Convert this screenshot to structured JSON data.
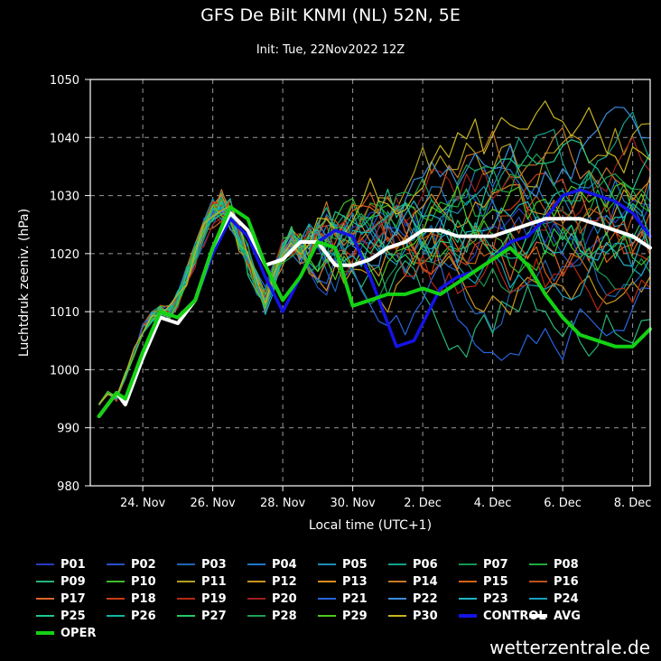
{
  "title": "GFS De Bilt KNMI (NL) 52N, 5E",
  "subtitle": "Init: Tue, 22Nov2022 12Z",
  "watermark": "wetterzentrale.de",
  "chart_data": {
    "type": "line",
    "title": "GFS De Bilt KNMI (NL) 52N, 5E",
    "subtitle": "Init: Tue, 22Nov2022 12Z",
    "xlabel": "Local time (UTC+1)",
    "ylabel": "Luchtdruk zeeniv. (hPa)",
    "xlim_days": [
      0,
      16
    ],
    "ylim": [
      980,
      1050
    ],
    "yticks": [
      980,
      990,
      1000,
      1010,
      1020,
      1030,
      1040,
      1050
    ],
    "xticks": [
      {
        "day": 1.5,
        "label": "24. Nov"
      },
      {
        "day": 3.5,
        "label": "26. Nov"
      },
      {
        "day": 5.5,
        "label": "28. Nov"
      },
      {
        "day": 7.5,
        "label": "30. Nov"
      },
      {
        "day": 9.5,
        "label": "2. Dec"
      },
      {
        "day": 11.5,
        "label": "4. Dec"
      },
      {
        "day": 13.5,
        "label": "6. Dec"
      },
      {
        "day": 15.5,
        "label": "8. Dec"
      }
    ],
    "grid": true,
    "x_step_days": 0.25,
    "base_values": [
      992,
      994,
      996,
      995,
      999,
      1003,
      1007,
      1009,
      1010,
      1010,
      1012,
      1016,
      1020,
      1024,
      1027,
      1028,
      1027,
      1023,
      1019,
      1015,
      1012,
      1016,
      1020,
      1022,
      1021
    ],
    "series": [
      {
        "name": "P01",
        "color": "#283cbe",
        "seed": 1,
        "target": 1020
      },
      {
        "name": "P02",
        "color": "#2850c8",
        "seed": 2,
        "target": 1027
      },
      {
        "name": "P03",
        "color": "#1e64b4",
        "seed": 3,
        "target": 1014
      },
      {
        "name": "P04",
        "color": "#1e78c8",
        "seed": 4,
        "target": 1032
      },
      {
        "name": "P05",
        "color": "#1e8cb4",
        "seed": 5,
        "target": 1025
      },
      {
        "name": "P06",
        "color": "#14a08c",
        "seed": 6,
        "target": 1036
      },
      {
        "name": "P07",
        "color": "#149650",
        "seed": 7,
        "target": 1018
      },
      {
        "name": "P08",
        "color": "#1eaa3c",
        "seed": 8,
        "target": 1029
      },
      {
        "name": "P09",
        "color": "#28b478",
        "seed": 9,
        "target": 1011
      },
      {
        "name": "P10",
        "color": "#3cbe28",
        "seed": 10,
        "target": 1023
      },
      {
        "name": "P11",
        "color": "#b4a01e",
        "seed": 11,
        "target": 1038
      },
      {
        "name": "P12",
        "color": "#c8961e",
        "seed": 12,
        "target": 1016
      },
      {
        "name": "P13",
        "color": "#dc8c1e",
        "seed": 13,
        "target": 1026
      },
      {
        "name": "P14",
        "color": "#c87828",
        "seed": 14,
        "target": 1033
      },
      {
        "name": "P15",
        "color": "#d26414",
        "seed": 15,
        "target": 1021
      },
      {
        "name": "P16",
        "color": "#be5014",
        "seed": 16,
        "target": 1028
      },
      {
        "name": "P17",
        "color": "#dc6428",
        "seed": 17,
        "target": 1019
      },
      {
        "name": "P18",
        "color": "#c83c14",
        "seed": 18,
        "target": 1024
      },
      {
        "name": "P19",
        "color": "#b42814",
        "seed": 19,
        "target": 1015
      },
      {
        "name": "P20",
        "color": "#a01e1e",
        "seed": 20,
        "target": 1030
      },
      {
        "name": "P21",
        "color": "#2864dc",
        "seed": 21,
        "target": 1012
      },
      {
        "name": "P22",
        "color": "#3c8cdc",
        "seed": 22,
        "target": 1035
      },
      {
        "name": "P23",
        "color": "#1eb4c8",
        "seed": 23,
        "target": 1022
      },
      {
        "name": "P24",
        "color": "#14a0be",
        "seed": 24,
        "target": 1017
      },
      {
        "name": "P25",
        "color": "#1ec88c",
        "seed": 25,
        "target": 1031
      },
      {
        "name": "P26",
        "color": "#14b4a0",
        "seed": 26,
        "target": 1027
      },
      {
        "name": "P27",
        "color": "#28c864",
        "seed": 27,
        "target": 1020
      },
      {
        "name": "P28",
        "color": "#1ea050",
        "seed": 28,
        "target": 1034
      },
      {
        "name": "P29",
        "color": "#50c81e",
        "seed": 29,
        "target": 1025
      },
      {
        "name": "P30",
        "color": "#c8b41e",
        "seed": 30,
        "target": 1037
      }
    ],
    "highlight_series": [
      {
        "name": "CONTROL",
        "color": "#1414e6",
        "width": 3.5,
        "points": [
          [
            0.25,
            992
          ],
          [
            0.75,
            996
          ],
          [
            1,
            994
          ],
          [
            1.5,
            1002
          ],
          [
            2,
            1009
          ],
          [
            2.5,
            1008
          ],
          [
            3,
            1012
          ],
          [
            3.5,
            1020
          ],
          [
            4,
            1026
          ],
          [
            4.5,
            1023
          ],
          [
            5,
            1016
          ],
          [
            5.5,
            1010
          ],
          [
            6,
            1016
          ],
          [
            6.5,
            1022
          ],
          [
            7,
            1024
          ],
          [
            7.5,
            1023
          ],
          [
            8,
            1016
          ],
          [
            8.5,
            1008
          ],
          [
            8.75,
            1004
          ],
          [
            9.25,
            1005
          ],
          [
            9.75,
            1011
          ],
          [
            10,
            1014
          ],
          [
            10.5,
            1016
          ],
          [
            11,
            1017
          ],
          [
            11.5,
            1019
          ],
          [
            12,
            1022
          ],
          [
            12.5,
            1023
          ],
          [
            13,
            1026
          ],
          [
            13.5,
            1030
          ],
          [
            14,
            1031
          ],
          [
            14.5,
            1030
          ],
          [
            15,
            1029
          ],
          [
            15.5,
            1027
          ],
          [
            16,
            1023
          ]
        ]
      },
      {
        "name": "AVG",
        "color": "#ffffff",
        "width": 4,
        "points": [
          [
            0.25,
            992
          ],
          [
            0.75,
            996
          ],
          [
            1,
            994
          ],
          [
            1.5,
            1002
          ],
          [
            2,
            1009
          ],
          [
            2.5,
            1008
          ],
          [
            3,
            1012
          ],
          [
            3.5,
            1021
          ],
          [
            4,
            1027
          ],
          [
            4.5,
            1024
          ],
          [
            5,
            1018
          ],
          [
            5.5,
            1019
          ],
          [
            6,
            1022
          ],
          [
            6.5,
            1022
          ],
          [
            7,
            1018
          ],
          [
            7.5,
            1018
          ],
          [
            8,
            1019
          ],
          [
            8.5,
            1021
          ],
          [
            9,
            1022
          ],
          [
            9.5,
            1024
          ],
          [
            10,
            1024
          ],
          [
            10.5,
            1023
          ],
          [
            11,
            1023
          ],
          [
            11.5,
            1023
          ],
          [
            12,
            1024
          ],
          [
            12.5,
            1025
          ],
          [
            13,
            1026
          ],
          [
            13.5,
            1026
          ],
          [
            14,
            1026
          ],
          [
            14.5,
            1025
          ],
          [
            15,
            1024
          ],
          [
            15.5,
            1023
          ],
          [
            16,
            1021
          ]
        ]
      },
      {
        "name": "OPER",
        "color": "#14d214",
        "width": 4,
        "points": [
          [
            0.25,
            992
          ],
          [
            0.75,
            996
          ],
          [
            1,
            995
          ],
          [
            1.5,
            1003
          ],
          [
            2,
            1010
          ],
          [
            2.5,
            1009
          ],
          [
            3,
            1012
          ],
          [
            3.5,
            1021
          ],
          [
            4,
            1028
          ],
          [
            4.5,
            1026
          ],
          [
            5,
            1018
          ],
          [
            5.5,
            1012
          ],
          [
            6,
            1016
          ],
          [
            6.5,
            1022
          ],
          [
            7,
            1021
          ],
          [
            7.5,
            1011
          ],
          [
            8,
            1012
          ],
          [
            8.5,
            1013
          ],
          [
            9,
            1013
          ],
          [
            9.5,
            1014
          ],
          [
            10,
            1013
          ],
          [
            10.5,
            1015
          ],
          [
            11,
            1017
          ],
          [
            11.5,
            1019
          ],
          [
            12,
            1021
          ],
          [
            12.5,
            1018
          ],
          [
            13,
            1013
          ],
          [
            13.5,
            1009
          ],
          [
            14,
            1006
          ],
          [
            14.5,
            1005
          ],
          [
            15,
            1004
          ],
          [
            15.5,
            1004
          ],
          [
            16,
            1007
          ]
        ]
      }
    ]
  }
}
